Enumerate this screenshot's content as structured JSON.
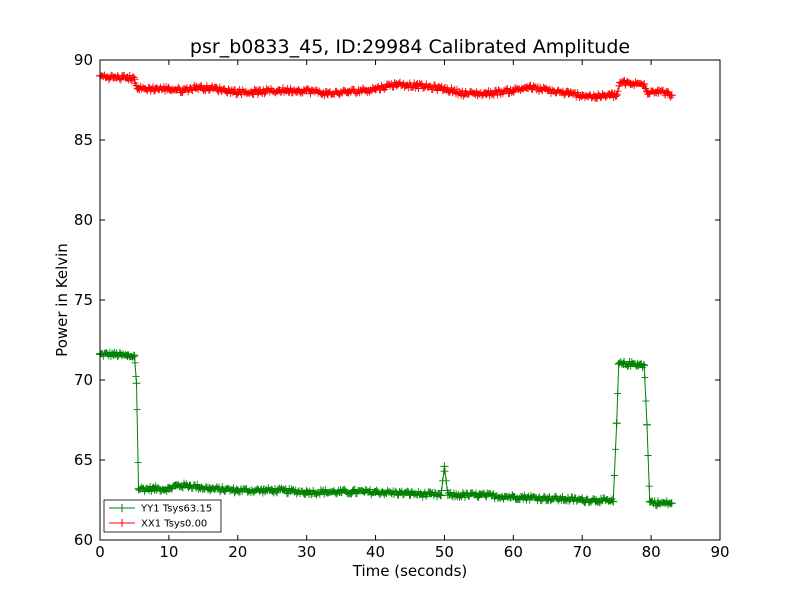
{
  "chart_data": {
    "type": "line",
    "title": "psr_b0833_45, ID:29984 Calibrated Amplitude",
    "xlabel": "Time (seconds)",
    "ylabel": "Power in Kelvin",
    "xlim": [
      0,
      90
    ],
    "ylim": [
      60,
      90
    ],
    "xticks": [
      0,
      10,
      20,
      30,
      40,
      50,
      60,
      70,
      80,
      90
    ],
    "yticks": [
      60,
      65,
      70,
      75,
      80,
      85,
      90
    ],
    "grid": false,
    "legend_position": "bottom-left",
    "series": [
      {
        "name": "YY1 Tsys63.15",
        "color": "#008000",
        "marker": "+",
        "x": [
          0,
          2,
          4,
          5,
          5.3,
          5.6,
          8,
          10,
          11,
          13,
          16,
          20,
          25,
          30,
          35,
          40,
          45,
          49.5,
          50,
          50.5,
          55,
          60,
          65,
          70,
          72,
          74.5,
          75,
          75.3,
          76,
          78,
          79,
          79.4,
          79.8,
          81,
          83
        ],
        "y": [
          71.6,
          71.6,
          71.5,
          71.5,
          69.8,
          63.2,
          63.2,
          63.2,
          63.4,
          63.4,
          63.2,
          63.1,
          63.1,
          63.0,
          63.0,
          63.0,
          62.9,
          62.8,
          64.6,
          62.8,
          62.8,
          62.7,
          62.6,
          62.5,
          62.5,
          62.4,
          67.3,
          71.0,
          71.0,
          71.0,
          70.9,
          67.2,
          62.4,
          62.3,
          62.3
        ]
      },
      {
        "name": "XX1 Tsys0.00",
        "color": "#ff0000",
        "marker": "+",
        "x": [
          0,
          2,
          4,
          5,
          5.5,
          8,
          10,
          12,
          14,
          17,
          20,
          23,
          26,
          30,
          33,
          36,
          40,
          43,
          46,
          50,
          53,
          56,
          60,
          62,
          65,
          68,
          70,
          72,
          74,
          75,
          75.5,
          77,
          79,
          79.5,
          81,
          83
        ],
        "y": [
          89.0,
          88.9,
          88.9,
          88.8,
          88.2,
          88.2,
          88.2,
          88.1,
          88.3,
          88.2,
          88.0,
          88.0,
          88.1,
          88.1,
          87.9,
          88.0,
          88.2,
          88.5,
          88.4,
          88.2,
          87.9,
          87.9,
          88.1,
          88.3,
          88.1,
          87.9,
          87.8,
          87.7,
          87.8,
          87.8,
          88.6,
          88.5,
          88.5,
          88.0,
          88.1,
          87.8
        ]
      }
    ]
  }
}
